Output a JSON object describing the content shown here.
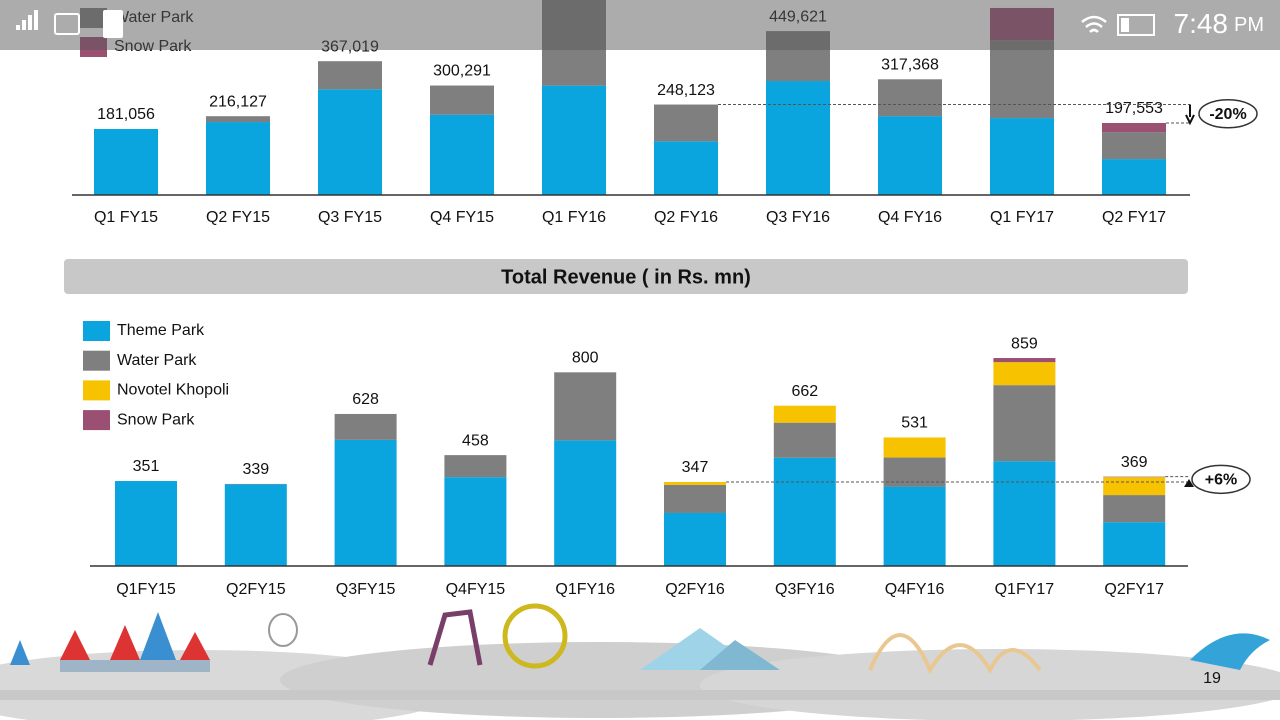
{
  "status_bar": {
    "time": "7:48",
    "ampm": "PM"
  },
  "chart_data": [
    {
      "type": "stacked_bar",
      "categories": [
        "Q1 FY15",
        "Q2 FY15",
        "Q3 FY15",
        "Q4 FY15",
        "Q1 FY16",
        "Q2 FY16",
        "Q3 FY16",
        "Q4 FY16",
        "Q1 FY17",
        "Q2 FY17"
      ],
      "series": [
        {
          "color": "#0aa5de",
          "values": [
            181056,
            200127,
            290019,
            220291,
            300000,
            147123,
            312621,
            216368,
            211000,
            98553
          ]
        },
        {
          "name": "Water Park",
          "color": "#7f7f7f",
          "values": [
            0,
            16000,
            77000,
            80000,
            241000,
            101000,
            137000,
            101000,
            214000,
            74000
          ]
        },
        {
          "name": "Snow Park",
          "color": "#9b4f73",
          "values": [
            0,
            0,
            0,
            0,
            0,
            0,
            0,
            0,
            88000,
            25000
          ]
        }
      ],
      "totals": [
        181056,
        216127,
        367019,
        300291,
        null,
        248123,
        449621,
        317368,
        null,
        197553
      ],
      "total_labels": [
        "181,056",
        "216,127",
        "367,019",
        "300,291",
        null,
        "248,123",
        "449,621",
        "317,368",
        null,
        "197,553"
      ],
      "annotation": "-20%"
    },
    {
      "type": "stacked_bar",
      "title": "Total Revenue ( in Rs. mn)",
      "categories": [
        "Q1FY15",
        "Q2FY15",
        "Q3FY15",
        "Q4FY15",
        "Q1FY16",
        "Q2FY16",
        "Q3FY16",
        "Q4FY16",
        "Q1FY17",
        "Q2FY17"
      ],
      "series": [
        {
          "name": "Theme Park",
          "color": "#0aa5de",
          "values": [
            351,
            337,
            521,
            367,
            519,
            219,
            447,
            328,
            433,
            181
          ]
        },
        {
          "name": "Water Park",
          "color": "#7f7f7f",
          "values": [
            0,
            2,
            107,
            91,
            281,
            116,
            145,
            120,
            314,
            112
          ]
        },
        {
          "name": "Novotel Khopoli",
          "color": "#f7c300",
          "values": [
            0,
            0,
            0,
            0,
            0,
            12,
            70,
            83,
            95,
            74
          ]
        },
        {
          "name": "Snow Park",
          "color": "#9b4f73",
          "values": [
            0,
            0,
            0,
            0,
            0,
            0,
            0,
            0,
            17,
            2
          ]
        }
      ],
      "totals": [
        351,
        339,
        628,
        458,
        800,
        347,
        662,
        531,
        859,
        369
      ],
      "annotation": "+6%"
    }
  ],
  "page_number": "19"
}
